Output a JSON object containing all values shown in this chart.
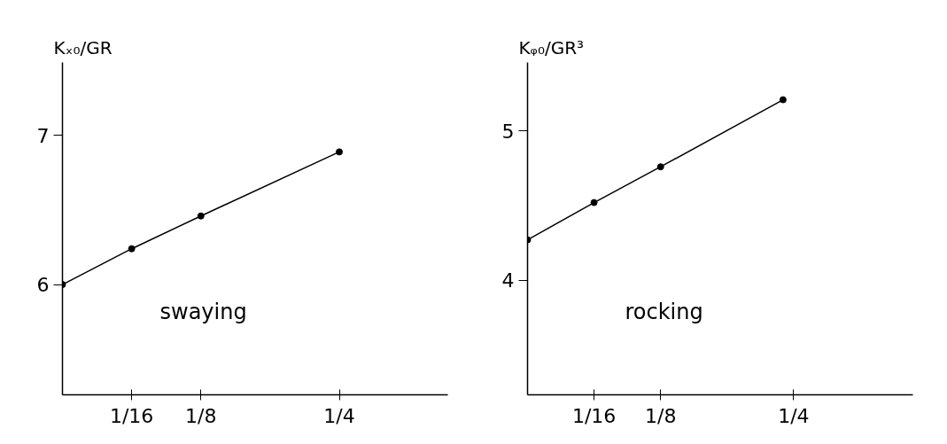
{
  "chart_data": [
    {
      "type": "line",
      "ylabel": "Kₓ₀/GR",
      "annotations": [
        "swaying"
      ],
      "marker": "circle",
      "grid": false,
      "x": [
        0,
        0.0625,
        0.125,
        0.25
      ],
      "series": [
        {
          "color": "#000000",
          "values": [
            6.0,
            6.24,
            6.46,
            6.89
          ]
        }
      ],
      "xlim": [
        0,
        0.348
      ],
      "xticks": [
        {
          "value": 0.0625,
          "label": "1/16"
        },
        {
          "value": 0.125,
          "label": "1/8"
        },
        {
          "value": 0.25,
          "label": "1/4"
        }
      ],
      "ylim": [
        5.26,
        7.49
      ],
      "yticks": [
        6,
        7
      ]
    },
    {
      "type": "line",
      "ylabel": "Kᵩ₀/GR³",
      "annotations": [
        "rocking"
      ],
      "marker": "circle",
      "grid": false,
      "x": [
        0,
        0.0625,
        0.125,
        0.24
      ],
      "series": [
        {
          "color": "#000000",
          "values": [
            4.27,
            4.52,
            4.76,
            5.21
          ]
        }
      ],
      "xlim": [
        0,
        0.362
      ],
      "xticks": [
        {
          "value": 0.0625,
          "label": "1/16"
        },
        {
          "value": 0.125,
          "label": "1/8"
        },
        {
          "value": 0.25,
          "label": "1/4"
        }
      ],
      "ylim": [
        3.23,
        5.46
      ],
      "yticks": [
        4,
        5
      ]
    }
  ]
}
